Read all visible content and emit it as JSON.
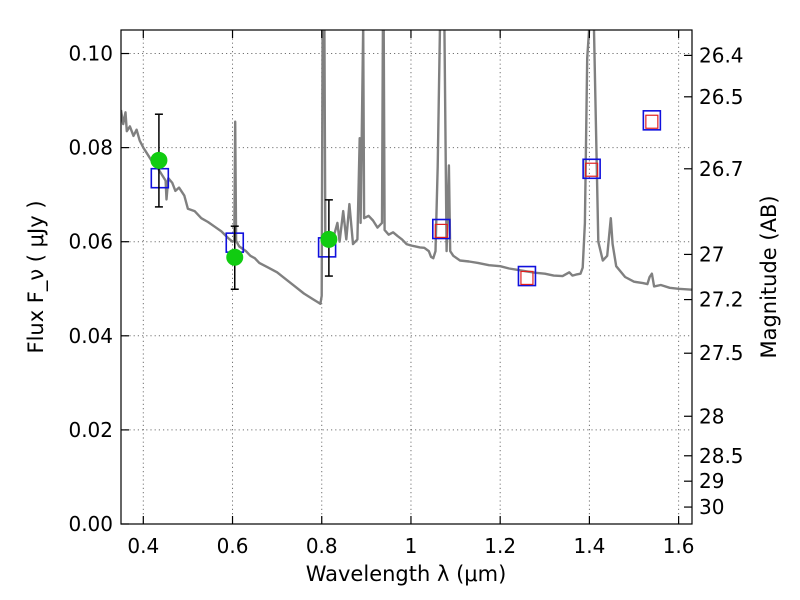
{
  "chart_data": {
    "type": "scatter",
    "title": "",
    "xlabel": "Wavelength  λ (μm)",
    "ylabel": "Flux  F_ν  ( μJy )",
    "y2label": "Magnitude (AB)",
    "xlim": [
      0.35,
      1.63
    ],
    "ylim": [
      0.0,
      0.105
    ],
    "grid": true,
    "xticks": [
      0.4,
      0.6,
      0.8,
      1.0,
      1.2,
      1.4,
      1.6
    ],
    "xtick_labels": [
      "0.4",
      "0.6",
      "0.8",
      "1",
      "1.2",
      "1.4",
      "1.6"
    ],
    "yticks": [
      0.0,
      0.02,
      0.04,
      0.06,
      0.08,
      0.1
    ],
    "ytick_labels": [
      "0.00",
      "0.02",
      "0.04",
      "0.06",
      "0.08",
      "0.10"
    ],
    "y2ticks": [
      {
        "label": "26.4",
        "flux": 0.0996
      },
      {
        "label": "26.5",
        "flux": 0.0908
      },
      {
        "label": "26.7",
        "flux": 0.0755
      },
      {
        "label": "27",
        "flux": 0.0573
      },
      {
        "label": "27.2",
        "flux": 0.0477
      },
      {
        "label": "27.5",
        "flux": 0.0363
      },
      {
        "label": "28",
        "flux": 0.0229
      },
      {
        "label": "28.5",
        "flux": 0.0145
      },
      {
        "label": "29",
        "flux": 0.0091
      },
      {
        "label": "30",
        "flux": 0.0036
      }
    ],
    "series": [
      {
        "kind": "line",
        "color": "#808080",
        "points": [
          [
            0.35,
            0.088
          ],
          [
            0.355,
            0.085
          ],
          [
            0.36,
            0.0875
          ],
          [
            0.363,
            0.0835
          ],
          [
            0.37,
            0.0845
          ],
          [
            0.378,
            0.0825
          ],
          [
            0.385,
            0.0838
          ],
          [
            0.392,
            0.0815
          ],
          [
            0.4,
            0.08
          ],
          [
            0.41,
            0.0785
          ],
          [
            0.42,
            0.077
          ],
          [
            0.43,
            0.076
          ],
          [
            0.44,
            0.0745
          ],
          [
            0.45,
            0.073
          ],
          [
            0.452,
            0.069
          ],
          [
            0.456,
            0.0735
          ],
          [
            0.465,
            0.0725
          ],
          [
            0.472,
            0.0708
          ],
          [
            0.48,
            0.0715
          ],
          [
            0.492,
            0.0698
          ],
          [
            0.5,
            0.067
          ],
          [
            0.515,
            0.0665
          ],
          [
            0.53,
            0.065
          ],
          [
            0.545,
            0.0642
          ],
          [
            0.56,
            0.0632
          ],
          [
            0.575,
            0.0622
          ],
          [
            0.59,
            0.0608
          ],
          [
            0.6,
            0.06
          ],
          [
            0.604,
            0.0602
          ],
          [
            0.606,
            0.0855
          ],
          [
            0.608,
            0.0602
          ],
          [
            0.615,
            0.059
          ],
          [
            0.63,
            0.058
          ],
          [
            0.64,
            0.057
          ],
          [
            0.65,
            0.0565
          ],
          [
            0.66,
            0.0555
          ],
          [
            0.68,
            0.0545
          ],
          [
            0.7,
            0.0535
          ],
          [
            0.72,
            0.052
          ],
          [
            0.74,
            0.0505
          ],
          [
            0.76,
            0.049
          ],
          [
            0.78,
            0.0478
          ],
          [
            0.79,
            0.0472
          ],
          [
            0.797,
            0.0468
          ],
          [
            0.8,
            0.0485
          ],
          [
            0.802,
            0.106
          ],
          [
            0.806,
            0.106
          ],
          [
            0.808,
            0.062
          ],
          [
            0.815,
            0.0608
          ],
          [
            0.825,
            0.0605
          ],
          [
            0.835,
            0.064
          ],
          [
            0.84,
            0.06
          ],
          [
            0.848,
            0.0665
          ],
          [
            0.855,
            0.0605
          ],
          [
            0.862,
            0.068
          ],
          [
            0.87,
            0.0595
          ],
          [
            0.88,
            0.0605
          ],
          [
            0.885,
            0.082
          ],
          [
            0.887,
            0.064
          ],
          [
            0.893,
            0.106
          ],
          [
            0.895,
            0.065
          ],
          [
            0.905,
            0.0655
          ],
          [
            0.915,
            0.0645
          ],
          [
            0.925,
            0.063
          ],
          [
            0.935,
            0.064
          ],
          [
            0.937,
            0.106
          ],
          [
            0.939,
            0.106
          ],
          [
            0.941,
            0.0625
          ],
          [
            0.95,
            0.0615
          ],
          [
            0.96,
            0.062
          ],
          [
            0.97,
            0.0612
          ],
          [
            0.98,
            0.0605
          ],
          [
            0.99,
            0.0595
          ],
          [
            1.0,
            0.0592
          ],
          [
            1.01,
            0.059
          ],
          [
            1.02,
            0.0588
          ],
          [
            1.03,
            0.0587
          ],
          [
            1.04,
            0.058
          ],
          [
            1.045,
            0.0568
          ],
          [
            1.05,
            0.0565
          ],
          [
            1.055,
            0.058
          ],
          [
            1.06,
            0.076
          ],
          [
            1.065,
            0.106
          ],
          [
            1.075,
            0.106
          ],
          [
            1.08,
            0.058
          ],
          [
            1.085,
            0.0762
          ],
          [
            1.088,
            0.058
          ],
          [
            1.095,
            0.057
          ],
          [
            1.11,
            0.056
          ],
          [
            1.13,
            0.0558
          ],
          [
            1.15,
            0.0555
          ],
          [
            1.175,
            0.055
          ],
          [
            1.2,
            0.0548
          ],
          [
            1.22,
            0.0543
          ],
          [
            1.24,
            0.054
          ],
          [
            1.26,
            0.0537
          ],
          [
            1.28,
            0.0534
          ],
          [
            1.3,
            0.0532
          ],
          [
            1.32,
            0.0528
          ],
          [
            1.34,
            0.0527
          ],
          [
            1.355,
            0.0535
          ],
          [
            1.362,
            0.0528
          ],
          [
            1.37,
            0.053
          ],
          [
            1.38,
            0.0532
          ],
          [
            1.385,
            0.0545
          ],
          [
            1.39,
            0.064
          ],
          [
            1.395,
            0.099
          ],
          [
            1.4,
            0.106
          ],
          [
            1.41,
            0.106
          ],
          [
            1.42,
            0.06
          ],
          [
            1.43,
            0.056
          ],
          [
            1.44,
            0.057
          ],
          [
            1.448,
            0.065
          ],
          [
            1.452,
            0.0595
          ],
          [
            1.46,
            0.0548
          ],
          [
            1.48,
            0.0525
          ],
          [
            1.5,
            0.0515
          ],
          [
            1.52,
            0.0512
          ],
          [
            1.53,
            0.051
          ],
          [
            1.535,
            0.0525
          ],
          [
            1.54,
            0.0532
          ],
          [
            1.545,
            0.0505
          ],
          [
            1.56,
            0.0508
          ],
          [
            1.58,
            0.0502
          ],
          [
            1.6,
            0.05
          ],
          [
            1.63,
            0.0498
          ]
        ]
      },
      {
        "kind": "model-squares",
        "color": "#1010dd",
        "points": [
          [
            0.437,
            0.0735
          ],
          [
            0.605,
            0.0598
          ],
          [
            0.812,
            0.0588
          ],
          [
            1.068,
            0.0627
          ],
          [
            1.26,
            0.0527
          ],
          [
            1.405,
            0.0755
          ],
          [
            1.54,
            0.0858
          ]
        ]
      },
      {
        "kind": "observed-squares",
        "color": "#e02020",
        "points": [
          [
            1.068,
            0.0623
          ],
          [
            1.26,
            0.0523
          ],
          [
            1.405,
            0.0753
          ],
          [
            1.54,
            0.0855
          ]
        ]
      },
      {
        "kind": "observed-circles",
        "color": "#11cc11",
        "points": [
          {
            "x": 0.435,
            "y": 0.0773,
            "err": [
              0.0674,
              0.0871
            ]
          },
          {
            "x": 0.605,
            "y": 0.0567,
            "err": [
              0.0499,
              0.0633
            ]
          },
          {
            "x": 0.816,
            "y": 0.0605,
            "err": [
              0.0527,
              0.0689
            ]
          }
        ]
      }
    ]
  }
}
